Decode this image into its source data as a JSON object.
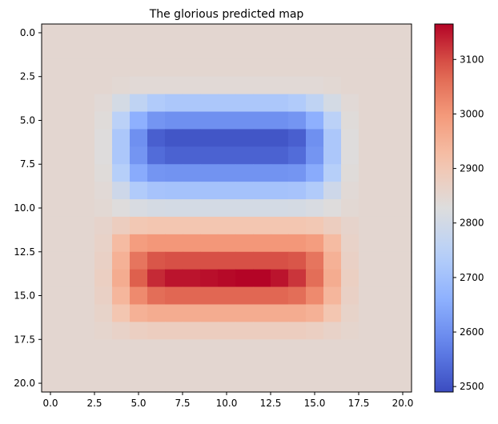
{
  "chart_data": {
    "type": "heatmap",
    "title": "The glorious predicted map",
    "xlabel": "",
    "ylabel": "",
    "rows": 21,
    "cols": 21,
    "xlim": [
      -0.5,
      20.5
    ],
    "ylim": [
      20.5,
      -0.5
    ],
    "x_ticks": [
      0.0,
      2.5,
      5.0,
      7.5,
      10.0,
      12.5,
      15.0,
      17.5,
      20.0
    ],
    "x_tick_labels": [
      "0.0",
      "2.5",
      "5.0",
      "7.5",
      "10.0",
      "12.5",
      "15.0",
      "17.5",
      "20.0"
    ],
    "y_ticks": [
      0.0,
      2.5,
      5.0,
      7.5,
      10.0,
      12.5,
      15.0,
      17.5,
      20.0
    ],
    "y_tick_labels": [
      "0.0",
      "2.5",
      "5.0",
      "7.5",
      "10.0",
      "12.5",
      "15.0",
      "17.5",
      "20.0"
    ],
    "colormap": "coolwarm",
    "colorbar": {
      "min": 2490,
      "max": 3165,
      "ticks": [
        2500,
        2600,
        2700,
        2800,
        2900,
        3000,
        3100
      ],
      "tick_labels": [
        "2500",
        "2600",
        "2700",
        "2800",
        "2900",
        "3000",
        "3100"
      ]
    },
    "values": [
      [
        2850,
        2850,
        2850,
        2850,
        2850,
        2850,
        2850,
        2850,
        2850,
        2850,
        2850,
        2850,
        2850,
        2850,
        2850,
        2850,
        2850,
        2850,
        2850,
        2850,
        2850
      ],
      [
        2850,
        2850,
        2850,
        2850,
        2850,
        2850,
        2850,
        2850,
        2850,
        2850,
        2850,
        2850,
        2850,
        2850,
        2850,
        2850,
        2850,
        2850,
        2850,
        2850,
        2850
      ],
      [
        2850,
        2850,
        2850,
        2850,
        2850,
        2850,
        2850,
        2850,
        2850,
        2850,
        2850,
        2850,
        2850,
        2850,
        2850,
        2850,
        2850,
        2850,
        2850,
        2850,
        2850
      ],
      [
        2850,
        2850,
        2850,
        2850,
        2845,
        2840,
        2840,
        2840,
        2840,
        2840,
        2840,
        2840,
        2840,
        2840,
        2840,
        2840,
        2845,
        2850,
        2850,
        2850,
        2850
      ],
      [
        2850,
        2850,
        2850,
        2840,
        2805,
        2760,
        2730,
        2720,
        2720,
        2720,
        2720,
        2720,
        2720,
        2720,
        2730,
        2760,
        2805,
        2840,
        2850,
        2850,
        2850
      ],
      [
        2850,
        2850,
        2850,
        2835,
        2750,
        2660,
        2610,
        2600,
        2600,
        2600,
        2600,
        2600,
        2600,
        2600,
        2610,
        2660,
        2750,
        2835,
        2850,
        2850,
        2850
      ],
      [
        2850,
        2850,
        2850,
        2830,
        2720,
        2600,
        2520,
        2505,
        2505,
        2505,
        2505,
        2505,
        2505,
        2505,
        2520,
        2600,
        2720,
        2830,
        2850,
        2850,
        2850
      ],
      [
        2850,
        2850,
        2850,
        2830,
        2720,
        2610,
        2540,
        2525,
        2525,
        2525,
        2525,
        2525,
        2525,
        2525,
        2540,
        2610,
        2720,
        2830,
        2850,
        2850,
        2850
      ],
      [
        2850,
        2850,
        2850,
        2835,
        2740,
        2650,
        2610,
        2605,
        2605,
        2605,
        2605,
        2605,
        2605,
        2605,
        2610,
        2650,
        2740,
        2835,
        2850,
        2850,
        2850
      ],
      [
        2850,
        2850,
        2850,
        2840,
        2790,
        2730,
        2710,
        2705,
        2705,
        2705,
        2705,
        2705,
        2705,
        2705,
        2710,
        2730,
        2790,
        2840,
        2850,
        2850,
        2850
      ],
      [
        2850,
        2850,
        2850,
        2845,
        2830,
        2815,
        2808,
        2805,
        2805,
        2805,
        2805,
        2805,
        2805,
        2805,
        2808,
        2815,
        2830,
        2845,
        2850,
        2850,
        2850
      ],
      [
        2850,
        2850,
        2850,
        2860,
        2880,
        2900,
        2905,
        2905,
        2905,
        2905,
        2905,
        2905,
        2905,
        2905,
        2905,
        2900,
        2880,
        2860,
        2850,
        2850,
        2850
      ],
      [
        2850,
        2850,
        2850,
        2865,
        2930,
        2990,
        3000,
        3000,
        3000,
        3000,
        3000,
        3000,
        3000,
        3000,
        3000,
        2990,
        2930,
        2865,
        2850,
        2850,
        2850
      ],
      [
        2850,
        2850,
        2850,
        2870,
        2950,
        3050,
        3090,
        3095,
        3095,
        3095,
        3095,
        3095,
        3095,
        3095,
        3090,
        3050,
        2950,
        2870,
        2850,
        2850,
        2850
      ],
      [
        2850,
        2850,
        2850,
        2875,
        2960,
        3080,
        3130,
        3150,
        3150,
        3155,
        3160,
        3165,
        3165,
        3150,
        3120,
        3060,
        2960,
        2875,
        2850,
        2850,
        2850
      ],
      [
        2850,
        2850,
        2850,
        2870,
        2940,
        3020,
        3060,
        3070,
        3070,
        3070,
        3070,
        3070,
        3070,
        3070,
        3060,
        3020,
        2940,
        2870,
        2850,
        2850,
        2850
      ],
      [
        2850,
        2850,
        2850,
        2862,
        2905,
        2950,
        2960,
        2960,
        2960,
        2960,
        2960,
        2960,
        2960,
        2960,
        2960,
        2950,
        2905,
        2862,
        2850,
        2850,
        2850
      ],
      [
        2850,
        2850,
        2850,
        2855,
        2865,
        2875,
        2880,
        2880,
        2880,
        2880,
        2880,
        2880,
        2880,
        2880,
        2880,
        2875,
        2865,
        2855,
        2850,
        2850,
        2850
      ],
      [
        2850,
        2850,
        2850,
        2850,
        2850,
        2850,
        2850,
        2850,
        2850,
        2850,
        2850,
        2850,
        2850,
        2850,
        2850,
        2850,
        2850,
        2850,
        2850,
        2850,
        2850
      ],
      [
        2850,
        2850,
        2850,
        2850,
        2850,
        2850,
        2850,
        2850,
        2850,
        2850,
        2850,
        2850,
        2850,
        2850,
        2850,
        2850,
        2850,
        2850,
        2850,
        2850,
        2850
      ],
      [
        2850,
        2850,
        2850,
        2850,
        2850,
        2850,
        2850,
        2850,
        2850,
        2850,
        2850,
        2850,
        2850,
        2850,
        2850,
        2850,
        2850,
        2850,
        2850,
        2850,
        2850
      ]
    ]
  }
}
